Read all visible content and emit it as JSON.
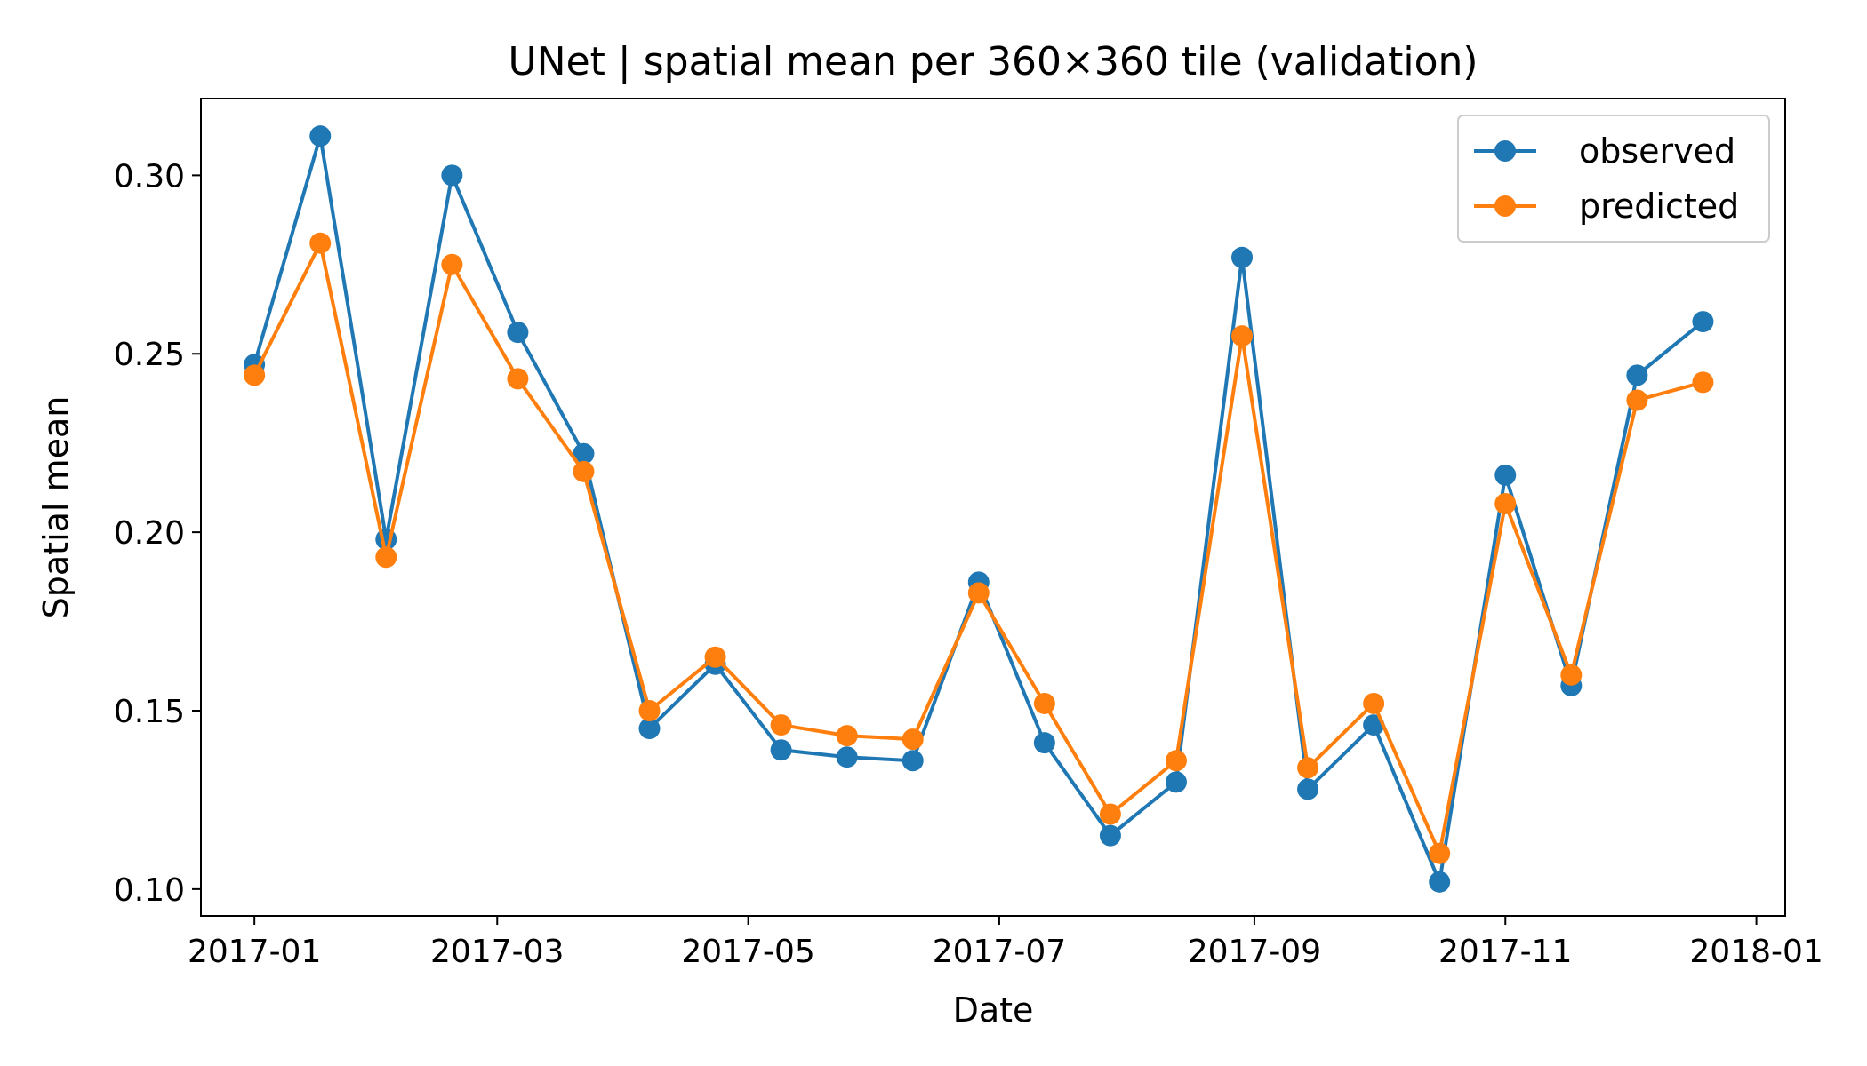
{
  "chart_data": {
    "type": "line",
    "title": "UNet | spatial mean per 360×360 tile (validation)",
    "xlabel": "Date",
    "ylabel": "Spatial mean",
    "x": [
      "2017-01-01",
      "2017-01-17",
      "2017-02-02",
      "2017-02-18",
      "2017-03-06",
      "2017-03-22",
      "2017-04-07",
      "2017-04-23",
      "2017-05-09",
      "2017-05-25",
      "2017-06-10",
      "2017-06-26",
      "2017-07-12",
      "2017-07-28",
      "2017-08-13",
      "2017-08-29",
      "2017-09-14",
      "2017-09-30",
      "2017-10-16",
      "2017-11-01",
      "2017-11-17",
      "2017-12-03",
      "2017-12-19"
    ],
    "series": [
      {
        "name": "observed",
        "color": "#1f77b4",
        "values": [
          0.247,
          0.311,
          0.198,
          0.3,
          0.256,
          0.222,
          0.145,
          0.163,
          0.139,
          0.137,
          0.136,
          0.186,
          0.141,
          0.115,
          0.13,
          0.277,
          0.128,
          0.146,
          0.102,
          0.216,
          0.157,
          0.244,
          0.259
        ]
      },
      {
        "name": "predicted",
        "color": "#ff7f0e",
        "values": [
          0.244,
          0.281,
          0.193,
          0.275,
          0.243,
          0.217,
          0.15,
          0.165,
          0.146,
          0.143,
          0.142,
          0.183,
          0.152,
          0.121,
          0.136,
          0.255,
          0.134,
          0.152,
          0.11,
          0.208,
          0.16,
          0.237,
          0.242
        ]
      }
    ],
    "xticks": [
      "2017-01",
      "2017-03",
      "2017-05",
      "2017-07",
      "2017-09",
      "2017-11",
      "2018-01"
    ],
    "yticks": [
      "0.10",
      "0.15",
      "0.20",
      "0.25",
      "0.30"
    ],
    "xlim": [
      "2016-12-19",
      "2018-01-08"
    ],
    "ylim": [
      0.0925,
      0.3215
    ],
    "grid": false,
    "legend": "top-right"
  }
}
